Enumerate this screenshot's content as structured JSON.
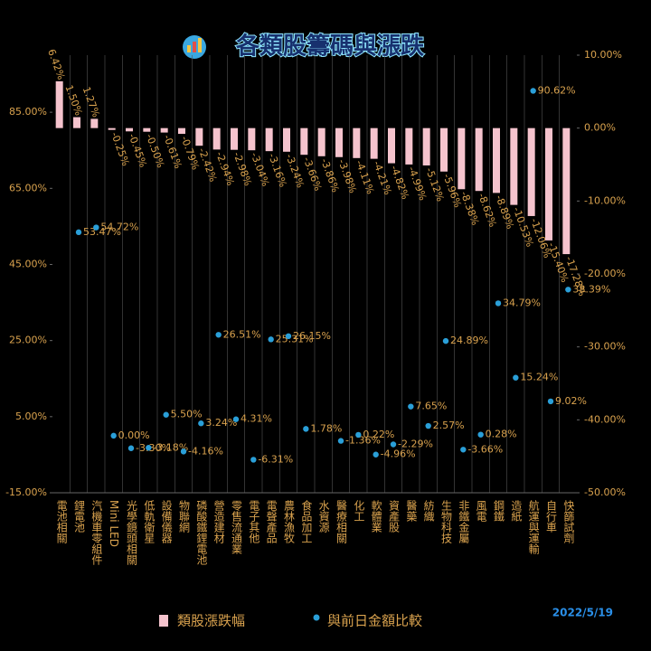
{
  "chart_data": {
    "type": "bar",
    "title": "各類股籌碼與漲跌",
    "date": "2022/5/19",
    "categories": [
      "電池相關",
      "鋰電池",
      "汽機車零組件",
      "Mini LED",
      "光學鏡頭相關",
      "低軌衛星",
      "設備儀器",
      "物聯網",
      "磷酸鐵鋰電池",
      "營造建材",
      "零售流通業",
      "電子其他",
      "電聲產品",
      "農林漁牧",
      "食品加工",
      "水資源",
      "醫療相關",
      "化工",
      "軟體業",
      "資產股",
      "醫藥",
      "紡織",
      "生物科技",
      "非鐵金屬",
      "風電",
      "鋼鐵",
      "造紙",
      "航運與運輸",
      "自行車",
      "快篩試劑"
    ],
    "series": [
      {
        "name": "類股漲跌幅",
        "type": "bar",
        "axis": "y2",
        "color": "#f5c3cd",
        "values": [
          6.42,
          1.5,
          1.27,
          -0.25,
          -0.45,
          -0.5,
          -0.61,
          -0.79,
          -2.42,
          -2.94,
          -2.98,
          -3.04,
          -3.16,
          -3.24,
          -3.66,
          -3.86,
          -3.98,
          -4.11,
          -4.21,
          -4.82,
          -4.99,
          -5.12,
          -5.96,
          -8.38,
          -8.62,
          -8.89,
          -10.53,
          -12.06,
          -15.4,
          -17.28
        ],
        "value_labels": [
          "6.42%",
          "1.50%",
          "1.27%",
          "-0.25%",
          "-0.45%",
          "-0.50%",
          "-0.61%",
          "-0.79%",
          "-2.42%",
          "-2.94%",
          "-2.98%",
          "-3.04%",
          "-3.16%",
          "-3.24%",
          "-3.66%",
          "-3.86%",
          "-3.98%",
          "-4.11%",
          "-4.21%",
          "-4.82%",
          "-4.99%",
          "-5.12%",
          "-5.96%",
          "-8.38%",
          "-8.62%",
          "-8.89%",
          "-10.53%",
          "-12.06%",
          "-15.40%",
          "-17.28%"
        ]
      },
      {
        "name": "與前日金額比較",
        "type": "scatter",
        "color": "#2a9fd8",
        "values": [
          null,
          53.47,
          54.72,
          0.0,
          -3.3,
          -3.18,
          5.5,
          -4.16,
          3.24,
          26.51,
          4.31,
          -6.31,
          25.31,
          26.15,
          1.78,
          null,
          -1.36,
          0.22,
          -4.96,
          -2.29,
          7.65,
          2.57,
          24.89,
          -3.66,
          0.28,
          34.79,
          15.24,
          90.62,
          9.02,
          38.39
        ],
        "value_labels": [
          null,
          "53.47%",
          "54.72%",
          "0.00%",
          "-3.30%",
          "-3.18%",
          "5.50%",
          "-4.16%",
          "3.24%",
          "26.51%",
          "4.31%",
          "-6.31%",
          "25.31%",
          "26.15%",
          "1.78%",
          null,
          "-1.36%",
          "0.22%",
          "-4.96%",
          "-2.29%",
          "7.65%",
          "2.57%",
          "24.89%",
          "-3.66%",
          "0.28%",
          "34.79%",
          "15.24%",
          "90.62%",
          "9.02%",
          "38.39%"
        ]
      }
    ],
    "ylim": [
      -15,
      100
    ],
    "yticks": [
      {
        "value": -15,
        "label": "-15.00%"
      },
      {
        "value": 5,
        "label": "5.00%"
      },
      {
        "value": 25,
        "label": "25.00%"
      },
      {
        "value": 45,
        "label": "45.00%"
      },
      {
        "value": 65,
        "label": "65.00%"
      },
      {
        "value": 85,
        "label": "85.00%"
      }
    ],
    "y2lim": [
      -50,
      10
    ],
    "y2ticks": [
      {
        "value": -50,
        "label": "-50.00%"
      },
      {
        "value": -40,
        "label": "-40.00%"
      },
      {
        "value": -30,
        "label": "-30.00%"
      },
      {
        "value": -20,
        "label": "-20.00%"
      },
      {
        "value": -10,
        "label": "-10.00%"
      },
      {
        "value": 0,
        "label": "0.00%"
      },
      {
        "value": 10,
        "label": "10.00%"
      }
    ],
    "grid": true
  }
}
